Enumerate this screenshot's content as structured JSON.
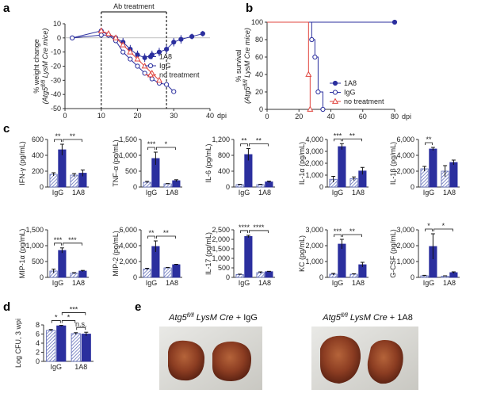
{
  "panel_labels": [
    "a",
    "b",
    "c",
    "d",
    "e"
  ],
  "chart_data": [
    {
      "type": "line",
      "xlim": [
        0,
        40
      ],
      "xticks": [
        0,
        10,
        20,
        30,
        40
      ],
      "xlabel": "dpi",
      "ylim": [
        -50,
        10
      ],
      "yticks": [
        -50,
        -40,
        -30,
        -20,
        -10,
        0,
        10
      ],
      "ylabel": "% weight change",
      "ylabel2": [
        "(Atg5",
        "fl/fl",
        " LysM Cre mice)"
      ],
      "hline": 0,
      "annotation": {
        "text": "Ab treatment",
        "x": [
          10,
          28
        ]
      },
      "legend": "center right",
      "series": [
        {
          "name": "1A8",
          "color": "#2b2f9e",
          "marker": "circle-filled",
          "x": [
            2,
            10,
            12,
            14,
            16,
            18,
            20,
            22,
            24,
            26,
            28,
            30,
            32,
            35,
            38
          ],
          "values": [
            0,
            5,
            2,
            0,
            -3,
            -8,
            -12,
            -14,
            -12,
            -10,
            -8,
            -3,
            -1,
            1,
            3
          ],
          "errors": [
            1,
            2,
            2,
            2,
            3,
            3,
            3,
            3,
            3,
            3,
            3,
            3,
            3,
            2,
            2
          ]
        },
        {
          "name": "IgG",
          "color": "#2b2f9e",
          "marker": "circle-open",
          "x": [
            2,
            10,
            12,
            14,
            16,
            18,
            20,
            22,
            24,
            26,
            28,
            30
          ],
          "values": [
            0,
            2,
            2,
            -2,
            -10,
            -15,
            -20,
            -25,
            -29,
            -32,
            -33,
            -38
          ]
        },
        {
          "name": "no treatment",
          "color": "#e0453f",
          "marker": "triangle-open",
          "x": [
            10,
            12,
            14,
            16,
            18,
            20,
            22,
            24,
            26
          ],
          "values": [
            5,
            3,
            0,
            -5,
            -10,
            -15,
            -20,
            -25,
            -30
          ]
        }
      ]
    },
    {
      "type": "step",
      "xlim": [
        0,
        80
      ],
      "xticks": [
        0,
        20,
        40,
        60,
        80
      ],
      "xlabel": "dpi",
      "ylim": [
        0,
        100
      ],
      "yticks": [
        0,
        20,
        40,
        60,
        80,
        100
      ],
      "ylabel": "% survival",
      "ylabel2": [
        "(Atg5",
        "fl/fl",
        " LysM Cre mice)"
      ],
      "legend": "lower right",
      "series": [
        {
          "name": "1A8",
          "color": "#2b2f9e",
          "marker": "circle-filled",
          "x": [
            0,
            80
          ],
          "values": [
            100,
            100
          ]
        },
        {
          "name": "IgG",
          "color": "#2b2f9e",
          "marker": "circle-open",
          "x": [
            0,
            28,
            30,
            32,
            35
          ],
          "values": [
            100,
            80,
            60,
            20,
            0
          ]
        },
        {
          "name": "no treatment",
          "color": "#e0453f",
          "marker": "triangle-open",
          "x": [
            0,
            26,
            27
          ],
          "values": [
            100,
            40,
            0
          ]
        }
      ]
    },
    {
      "type": "bar",
      "categories": [
        "IgG",
        "1A8"
      ],
      "ylabel": "IFN-γ (pg/mL)",
      "ylim": [
        0,
        600
      ],
      "yticks": [
        0,
        200,
        400,
        600
      ],
      "series": [
        {
          "color": "#5a67b5",
          "pattern": "hatch",
          "values": [
            160,
            150
          ],
          "errors": [
            20,
            20
          ]
        },
        {
          "color": "#2b2f9e",
          "values": [
            470,
            175
          ],
          "errors": [
            70,
            40
          ]
        }
      ],
      "brackets": [
        {
          "label": "**",
          "bars": [
            0,
            1
          ]
        },
        {
          "label": "**",
          "bars": [
            1,
            3
          ]
        }
      ]
    },
    {
      "type": "bar",
      "categories": [
        "IgG",
        "1A8"
      ],
      "ylabel": "TNF-α (pg/mL)",
      "ylim": [
        0,
        1500
      ],
      "yticks": [
        0,
        500,
        {
          "value": 1000,
          "label": "1,000"
        },
        {
          "value": 1500,
          "label": "1,500"
        }
      ],
      "series": [
        {
          "color": "#5a67b5",
          "pattern": "hatch",
          "values": [
            150,
            100
          ],
          "errors": [
            30,
            10
          ]
        },
        {
          "color": "#2b2f9e",
          "values": [
            900,
            200
          ],
          "errors": [
            200,
            30
          ]
        }
      ],
      "brackets": [
        {
          "label": "***",
          "bars": [
            0,
            1
          ]
        },
        {
          "label": "*",
          "bars": [
            1,
            3
          ]
        }
      ]
    },
    {
      "type": "bar",
      "categories": [
        "IgG",
        "1A8"
      ],
      "ylabel": "IL-6 (pg/mL)",
      "ylim": [
        0,
        1200
      ],
      "yticks": [
        0,
        400,
        800,
        {
          "value": 1200,
          "label": "1,200"
        }
      ],
      "series": [
        {
          "color": "#5a67b5",
          "pattern": "hatch",
          "values": [
            60,
            60
          ],
          "errors": [
            10,
            10
          ]
        },
        {
          "color": "#2b2f9e",
          "values": [
            820,
            130
          ],
          "errors": [
            150,
            20
          ]
        }
      ],
      "brackets": [
        {
          "label": "**",
          "bars": [
            0,
            1
          ]
        },
        {
          "label": "**",
          "bars": [
            1,
            3
          ]
        }
      ]
    },
    {
      "type": "bar",
      "categories": [
        "IgG",
        "1A8"
      ],
      "ylabel": "IL-1α (pg/mL)",
      "ylim": [
        0,
        4000
      ],
      "yticks": [
        0,
        {
          "value": 1000,
          "label": "1,000"
        },
        {
          "value": 2000,
          "label": "2,000"
        },
        {
          "value": 3000,
          "label": "3,000"
        },
        {
          "value": 4000,
          "label": "4,000"
        }
      ],
      "series": [
        {
          "color": "#5a67b5",
          "pattern": "hatch",
          "values": [
            650,
            700
          ],
          "errors": [
            250,
            150
          ]
        },
        {
          "color": "#2b2f9e",
          "values": [
            3400,
            1350
          ],
          "errors": [
            250,
            300
          ]
        }
      ],
      "brackets": [
        {
          "label": "***",
          "bars": [
            0,
            1
          ]
        },
        {
          "label": "**",
          "bars": [
            1,
            3
          ]
        }
      ]
    },
    {
      "type": "bar",
      "categories": [
        "IgG",
        "1A8"
      ],
      "ylabel": "IL-1β (pg/mL)",
      "ylim": [
        0,
        6000
      ],
      "yticks": [
        0,
        {
          "value": 2000,
          "label": "2,000"
        },
        {
          "value": 4000,
          "label": "4,000"
        },
        {
          "value": 6000,
          "label": "6,000"
        }
      ],
      "series": [
        {
          "color": "#5a67b5",
          "pattern": "hatch",
          "values": [
            2300,
            2000
          ],
          "errors": [
            300,
            700
          ]
        },
        {
          "color": "#2b2f9e",
          "values": [
            4800,
            3100
          ],
          "errors": [
            200,
            300
          ]
        }
      ],
      "brackets": [
        {
          "label": "**",
          "bars": [
            0,
            1
          ]
        }
      ]
    },
    {
      "type": "bar",
      "categories": [
        "IgG",
        "1A8"
      ],
      "ylabel": "MIP-1α (pg/mL)",
      "ylim": [
        0,
        1500
      ],
      "yticks": [
        0,
        500,
        {
          "value": 1000,
          "label": "1,000"
        },
        {
          "value": 1500,
          "label": "1,500"
        }
      ],
      "series": [
        {
          "color": "#5a67b5",
          "pattern": "hatch",
          "values": [
            200,
            130
          ],
          "errors": [
            60,
            20
          ]
        },
        {
          "color": "#2b2f9e",
          "values": [
            850,
            200
          ],
          "errors": [
            80,
            20
          ]
        }
      ],
      "brackets": [
        {
          "label": "***",
          "bars": [
            0,
            1
          ]
        },
        {
          "label": "***",
          "bars": [
            1,
            3
          ]
        }
      ]
    },
    {
      "type": "bar",
      "categories": [
        "IgG",
        "1A8"
      ],
      "ylabel": "MIP-2 (pg/mL)",
      "ylim": [
        0,
        6000
      ],
      "yticks": [
        0,
        {
          "value": 2000,
          "label": "2,000"
        },
        {
          "value": 4000,
          "label": "4,000"
        },
        {
          "value": 6000,
          "label": "6,000"
        }
      ],
      "series": [
        {
          "color": "#5a67b5",
          "pattern": "hatch",
          "values": [
            1050,
            1200
          ],
          "errors": [
            100,
            50
          ]
        },
        {
          "color": "#2b2f9e",
          "values": [
            3900,
            1600
          ],
          "errors": [
            700,
            50
          ]
        }
      ],
      "brackets": [
        {
          "label": "**",
          "bars": [
            0,
            1
          ]
        },
        {
          "label": "**",
          "bars": [
            1,
            3
          ]
        }
      ]
    },
    {
      "type": "bar",
      "categories": [
        "IgG",
        "1A8"
      ],
      "ylabel": "IL-17 (pg/mL)",
      "ylim": [
        0,
        2500
      ],
      "yticks": [
        0,
        500,
        {
          "value": 1000,
          "label": "1,000"
        },
        {
          "value": 1500,
          "label": "1,500"
        },
        {
          "value": 2000,
          "label": "2,000"
        },
        {
          "value": 2500,
          "label": "2,500"
        }
      ],
      "series": [
        {
          "color": "#5a67b5",
          "pattern": "hatch",
          "values": [
            150,
            250
          ],
          "errors": [
            20,
            40
          ]
        },
        {
          "color": "#2b2f9e",
          "values": [
            2150,
            300
          ],
          "errors": [
            60,
            20
          ]
        }
      ],
      "brackets": [
        {
          "label": "****",
          "bars": [
            0,
            1
          ]
        },
        {
          "label": "****",
          "bars": [
            1,
            3
          ]
        }
      ]
    },
    {
      "type": "bar",
      "categories": [
        "IgG",
        "1A8"
      ],
      "ylabel": "KC (pg/mL)",
      "ylim": [
        0,
        3000
      ],
      "yticks": [
        0,
        {
          "value": 1000,
          "label": "1,000"
        },
        {
          "value": 2000,
          "label": "2,000"
        },
        {
          "value": 3000,
          "label": "3,000"
        }
      ],
      "series": [
        {
          "color": "#5a67b5",
          "pattern": "hatch",
          "values": [
            200,
            200
          ],
          "errors": [
            50,
            30
          ]
        },
        {
          "color": "#2b2f9e",
          "values": [
            2100,
            800
          ],
          "errors": [
            300,
            150
          ]
        }
      ],
      "brackets": [
        {
          "label": "***",
          "bars": [
            0,
            1
          ]
        },
        {
          "label": "**",
          "bars": [
            1,
            3
          ]
        }
      ]
    },
    {
      "type": "bar",
      "categories": [
        "IgG",
        "1A8"
      ],
      "ylabel": "G-CSF (pg/mL)",
      "ylim": [
        0,
        3000
      ],
      "yticks": [
        0,
        {
          "value": 1000,
          "label": "1,000"
        },
        {
          "value": 2000,
          "label": "2,000"
        },
        {
          "value": 3000,
          "label": "3,000"
        }
      ],
      "series": [
        {
          "color": "#5a67b5",
          "pattern": "hatch",
          "values": [
            100,
            80
          ],
          "errors": [
            30,
            20
          ]
        },
        {
          "color": "#2b2f9e",
          "values": [
            1950,
            300
          ],
          "errors": [
            800,
            50
          ]
        }
      ],
      "brackets": [
        {
          "label": "*",
          "bars": [
            0,
            1
          ]
        },
        {
          "label": "*",
          "bars": [
            1,
            3
          ]
        }
      ]
    },
    {
      "type": "bar",
      "categories": [
        "IgG",
        "1A8"
      ],
      "ylabel": "Log CFU, 3 wpi",
      "ylim": [
        0,
        8
      ],
      "yticks": [
        0,
        2,
        4,
        6,
        8
      ],
      "series": [
        {
          "color": "#5a67b5",
          "pattern": "hatch",
          "values": [
            6.8,
            6.1
          ],
          "errors": [
            0.2,
            0.2
          ]
        },
        {
          "color": "#2b2f9e",
          "values": [
            7.8,
            6.0
          ],
          "errors": [
            0.1,
            0.4
          ]
        }
      ],
      "brackets": [
        {
          "label": "*",
          "bars": [
            0,
            1
          ]
        },
        {
          "label": "*",
          "bars": [
            1,
            2
          ]
        },
        {
          "label": "***",
          "bars": [
            1,
            3
          ]
        },
        {
          "label": "n.s.",
          "bars": [
            2,
            3
          ]
        }
      ]
    }
  ],
  "photos": [
    {
      "label": [
        "Atg5",
        "fl/fl",
        " LysM Cre",
        " + IgG"
      ]
    },
    {
      "label": [
        "Atg5",
        "fl/fl",
        " LysM Cre",
        " + 1A8"
      ]
    }
  ]
}
